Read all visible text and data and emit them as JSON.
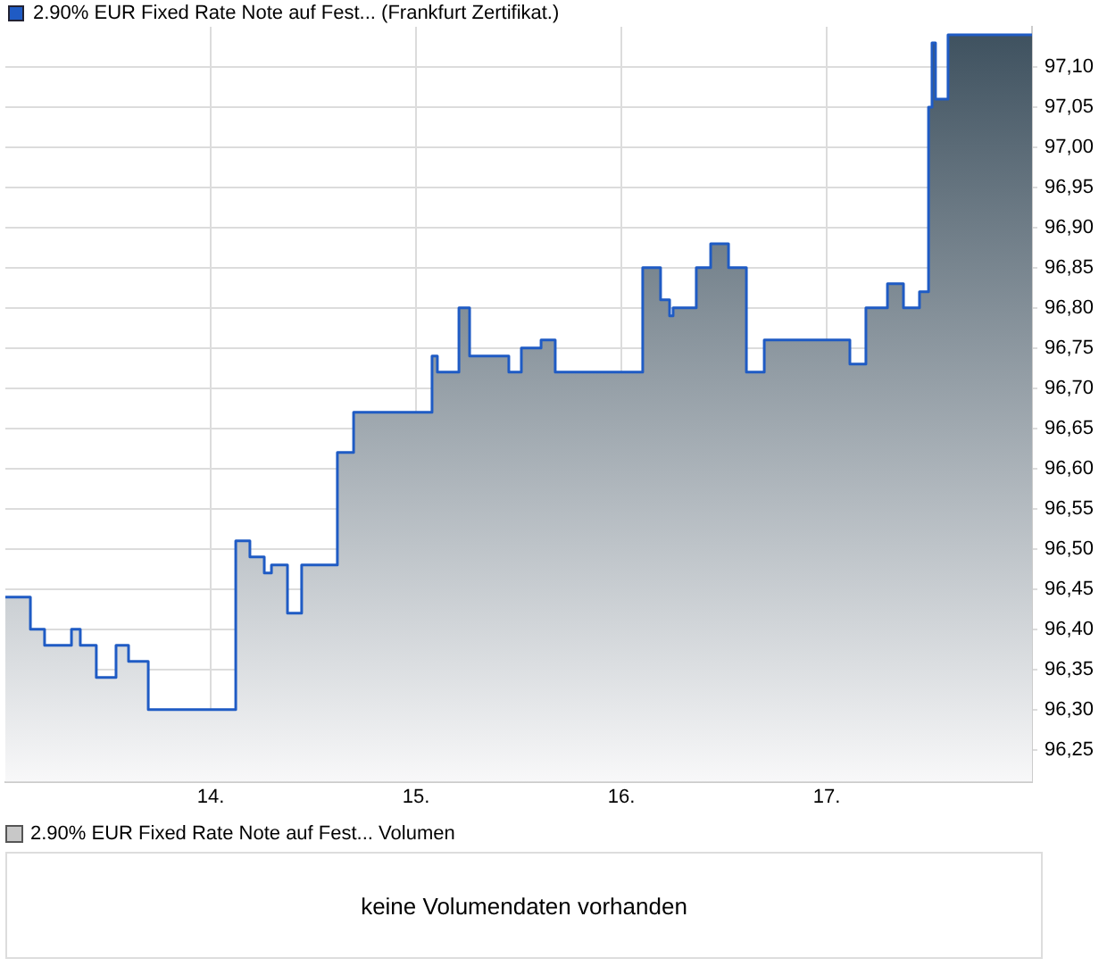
{
  "chart_data": [
    {
      "type": "area",
      "legend": "top left",
      "grid": true,
      "x": [
        13,
        13.122,
        13.122,
        13.191,
        13.191,
        13.322,
        13.322,
        13.365,
        13.365,
        13.443,
        13.443,
        13.539,
        13.539,
        13.6,
        13.6,
        13.696,
        13.696,
        14.122,
        14.122,
        14.191,
        14.191,
        14.261,
        14.261,
        14.296,
        14.296,
        14.374,
        14.374,
        14.443,
        14.443,
        14.617,
        14.617,
        14.696,
        14.696,
        15.078,
        15.078,
        15.104,
        15.104,
        15.209,
        15.209,
        15.261,
        15.261,
        15.452,
        15.452,
        15.513,
        15.513,
        15.609,
        15.609,
        15.678,
        15.678,
        16.104,
        16.104,
        16.191,
        16.191,
        16.235,
        16.235,
        16.252,
        16.252,
        16.365,
        16.365,
        16.435,
        16.435,
        16.522,
        16.522,
        16.609,
        16.609,
        16.696,
        16.696,
        17.113,
        17.113,
        17.191,
        17.191,
        17.296,
        17.296,
        17.374,
        17.374,
        17.452,
        17.452,
        17.496,
        17.496,
        17.513,
        17.513,
        17.53,
        17.53,
        17.591,
        17.591,
        18
      ],
      "series": [
        {
          "name": "2.90% EUR Fixed Rate Note auf Fest... (Frankfurt Zertifikat.)",
          "color": "#1f5bc4",
          "values": [
            96.44,
            96.44,
            96.4,
            96.4,
            96.38,
            96.38,
            96.4,
            96.4,
            96.38,
            96.38,
            96.34,
            96.34,
            96.38,
            96.38,
            96.36,
            96.36,
            96.3,
            96.3,
            96.51,
            96.51,
            96.49,
            96.49,
            96.47,
            96.47,
            96.48,
            96.48,
            96.42,
            96.42,
            96.48,
            96.48,
            96.62,
            96.62,
            96.67,
            96.67,
            96.74,
            96.74,
            96.72,
            96.72,
            96.8,
            96.8,
            96.74,
            96.74,
            96.72,
            96.72,
            96.75,
            96.75,
            96.76,
            96.76,
            96.72,
            96.72,
            96.85,
            96.85,
            96.81,
            96.81,
            96.79,
            96.79,
            96.8,
            96.8,
            96.85,
            96.85,
            96.88,
            96.88,
            96.85,
            96.85,
            96.72,
            96.72,
            96.76,
            96.76,
            96.73,
            96.73,
            96.8,
            96.8,
            96.83,
            96.83,
            96.8,
            96.8,
            96.82,
            96.82,
            97.05,
            97.05,
            97.13,
            97.13,
            97.06,
            97.06,
            97.14,
            97.14
          ]
        }
      ],
      "xlim": [
        13,
        18
      ],
      "xticks": [
        {
          "value": 14,
          "label": "14."
        },
        {
          "value": 15,
          "label": "15."
        },
        {
          "value": 16,
          "label": "16."
        },
        {
          "value": 17,
          "label": "17."
        }
      ],
      "ylim": [
        96.21,
        97.15
      ],
      "yticks": [
        {
          "value": 96.25,
          "label": "96,25"
        },
        {
          "value": 96.3,
          "label": "96,30"
        },
        {
          "value": 96.35,
          "label": "96,35"
        },
        {
          "value": 96.4,
          "label": "96,40"
        },
        {
          "value": 96.45,
          "label": "96,45"
        },
        {
          "value": 96.5,
          "label": "96,50"
        },
        {
          "value": 96.55,
          "label": "96,55"
        },
        {
          "value": 96.6,
          "label": "96,60"
        },
        {
          "value": 96.65,
          "label": "96,65"
        },
        {
          "value": 96.7,
          "label": "96,70"
        },
        {
          "value": 96.75,
          "label": "96,75"
        },
        {
          "value": 96.8,
          "label": "96,80"
        },
        {
          "value": 96.85,
          "label": "96,85"
        },
        {
          "value": 96.9,
          "label": "96,90"
        },
        {
          "value": 96.95,
          "label": "96,95"
        },
        {
          "value": 97,
          "label": "97,00"
        },
        {
          "value": 97.05,
          "label": "97,05"
        },
        {
          "value": 97.1,
          "label": "97,10"
        }
      ]
    },
    {
      "type": "other",
      "title": "2.90% EUR Fixed Rate Note auf Fest... Volumen",
      "annotations": [
        "keine Volumendaten vorhanden"
      ]
    }
  ]
}
